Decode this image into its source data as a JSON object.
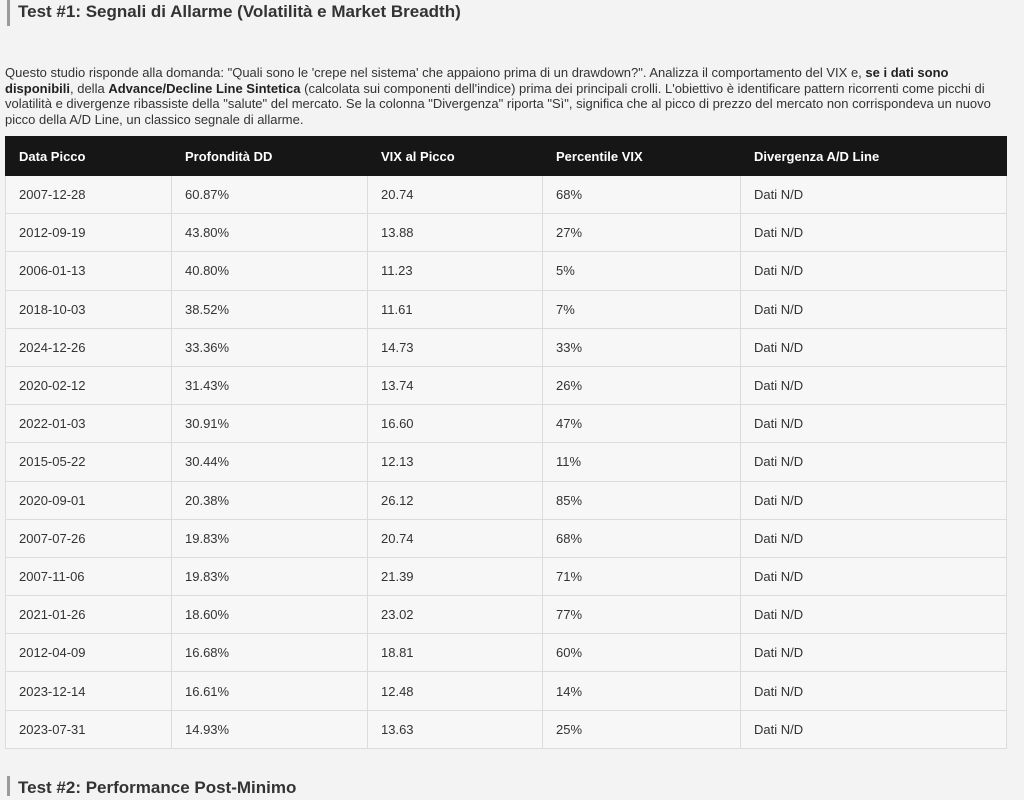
{
  "section": {
    "title": "Test #1: Segnali di Allarme (Volatilità e Market Breadth)"
  },
  "intro": {
    "p1": "Questo studio risponde alla domanda: \"Quali sono le 'crepe nel sistema' che appaiono prima di un drawdown?\". Analizza il comportamento del VIX e, ",
    "b1": "se i dati sono disponibili",
    "p2": ", della ",
    "b2": "Advance/Decline Line Sintetica",
    "p3": " (calcolata sui componenti dell'indice) prima dei principali crolli. L'obiettivo è identificare pattern ricorrenti come picchi di volatilità e divergenze ribassiste della \"salute\" del mercato. Se la colonna \"Divergenza\" riporta \"Sì\", significa che al picco di prezzo del mercato non corrispondeva un nuovo picco della A/D Line, un classico segnale di allarme."
  },
  "table": {
    "headers": [
      "Data Picco",
      "Profondità DD",
      "VIX al Picco",
      "Percentile VIX",
      "Divergenza A/D Line"
    ],
    "rows": [
      [
        "2007-12-28",
        "60.87%",
        "20.74",
        "68%",
        "Dati N/D"
      ],
      [
        "2012-09-19",
        "43.80%",
        "13.88",
        "27%",
        "Dati N/D"
      ],
      [
        "2006-01-13",
        "40.80%",
        "11.23",
        "5%",
        "Dati N/D"
      ],
      [
        "2018-10-03",
        "38.52%",
        "11.61",
        "7%",
        "Dati N/D"
      ],
      [
        "2024-12-26",
        "33.36%",
        "14.73",
        "33%",
        "Dati N/D"
      ],
      [
        "2020-02-12",
        "31.43%",
        "13.74",
        "26%",
        "Dati N/D"
      ],
      [
        "2022-01-03",
        "30.91%",
        "16.60",
        "47%",
        "Dati N/D"
      ],
      [
        "2015-05-22",
        "30.44%",
        "12.13",
        "11%",
        "Dati N/D"
      ],
      [
        "2020-09-01",
        "20.38%",
        "26.12",
        "85%",
        "Dati N/D"
      ],
      [
        "2007-07-26",
        "19.83%",
        "20.74",
        "68%",
        "Dati N/D"
      ],
      [
        "2007-11-06",
        "19.83%",
        "21.39",
        "71%",
        "Dati N/D"
      ],
      [
        "2021-01-26",
        "18.60%",
        "23.02",
        "77%",
        "Dati N/D"
      ],
      [
        "2012-04-09",
        "16.68%",
        "18.81",
        "60%",
        "Dati N/D"
      ],
      [
        "2023-12-14",
        "16.61%",
        "12.48",
        "14%",
        "Dati N/D"
      ],
      [
        "2023-07-31",
        "14.93%",
        "13.63",
        "25%",
        "Dati N/D"
      ]
    ]
  },
  "next_section": {
    "title": "Test #2: Performance Post-Minimo"
  }
}
